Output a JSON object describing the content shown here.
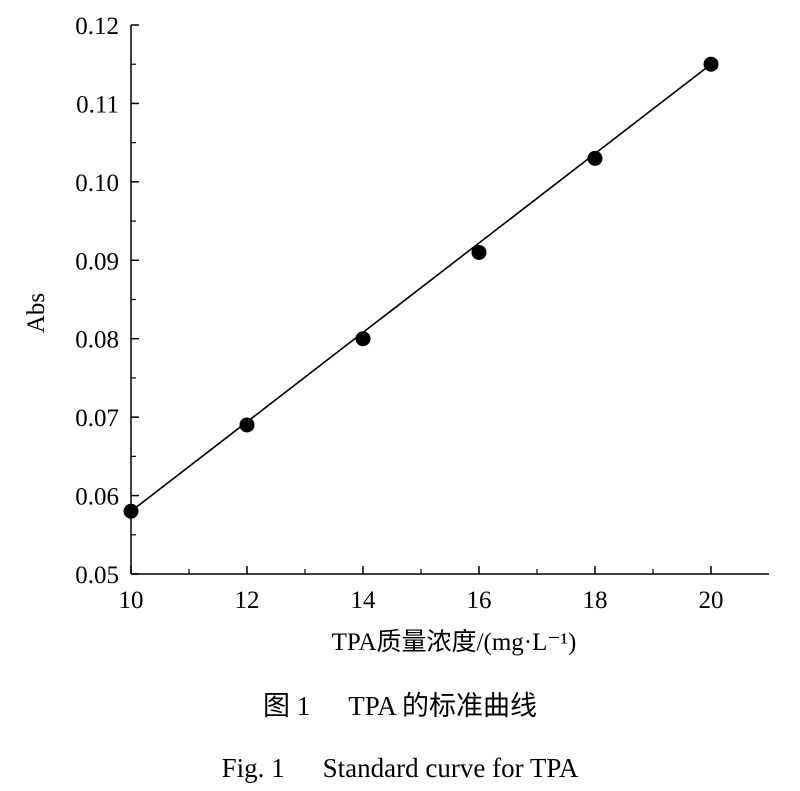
{
  "chart_data": {
    "type": "scatter",
    "xlabel": "TPA质量浓度/(mg·L⁻¹)",
    "ylabel": "Abs",
    "xlim": [
      10,
      21
    ],
    "ylim": [
      0.05,
      0.12
    ],
    "x_ticks": [
      "10",
      "12",
      "14",
      "16",
      "18",
      "20"
    ],
    "y_ticks": [
      "0.05",
      "0.06",
      "0.07",
      "0.08",
      "0.09",
      "0.10",
      "0.11",
      "0.12"
    ],
    "series": [
      {
        "x": [
          10,
          12,
          14,
          16,
          18,
          20
        ],
        "y": [
          0.058,
          0.069,
          0.08,
          0.091,
          0.103,
          0.115
        ],
        "marker": "filled-circle",
        "fit_line": {
          "x": [
            10,
            20
          ],
          "y": [
            0.058,
            0.115
          ]
        }
      }
    ],
    "grid": false,
    "colors": {
      "marker": "#000000",
      "line": "#000000"
    }
  },
  "captions": {
    "cn_number": "图 1",
    "cn_text": "TPA 的标准曲线",
    "en_number": "Fig. 1",
    "en_text": "Standard curve for TPA"
  }
}
